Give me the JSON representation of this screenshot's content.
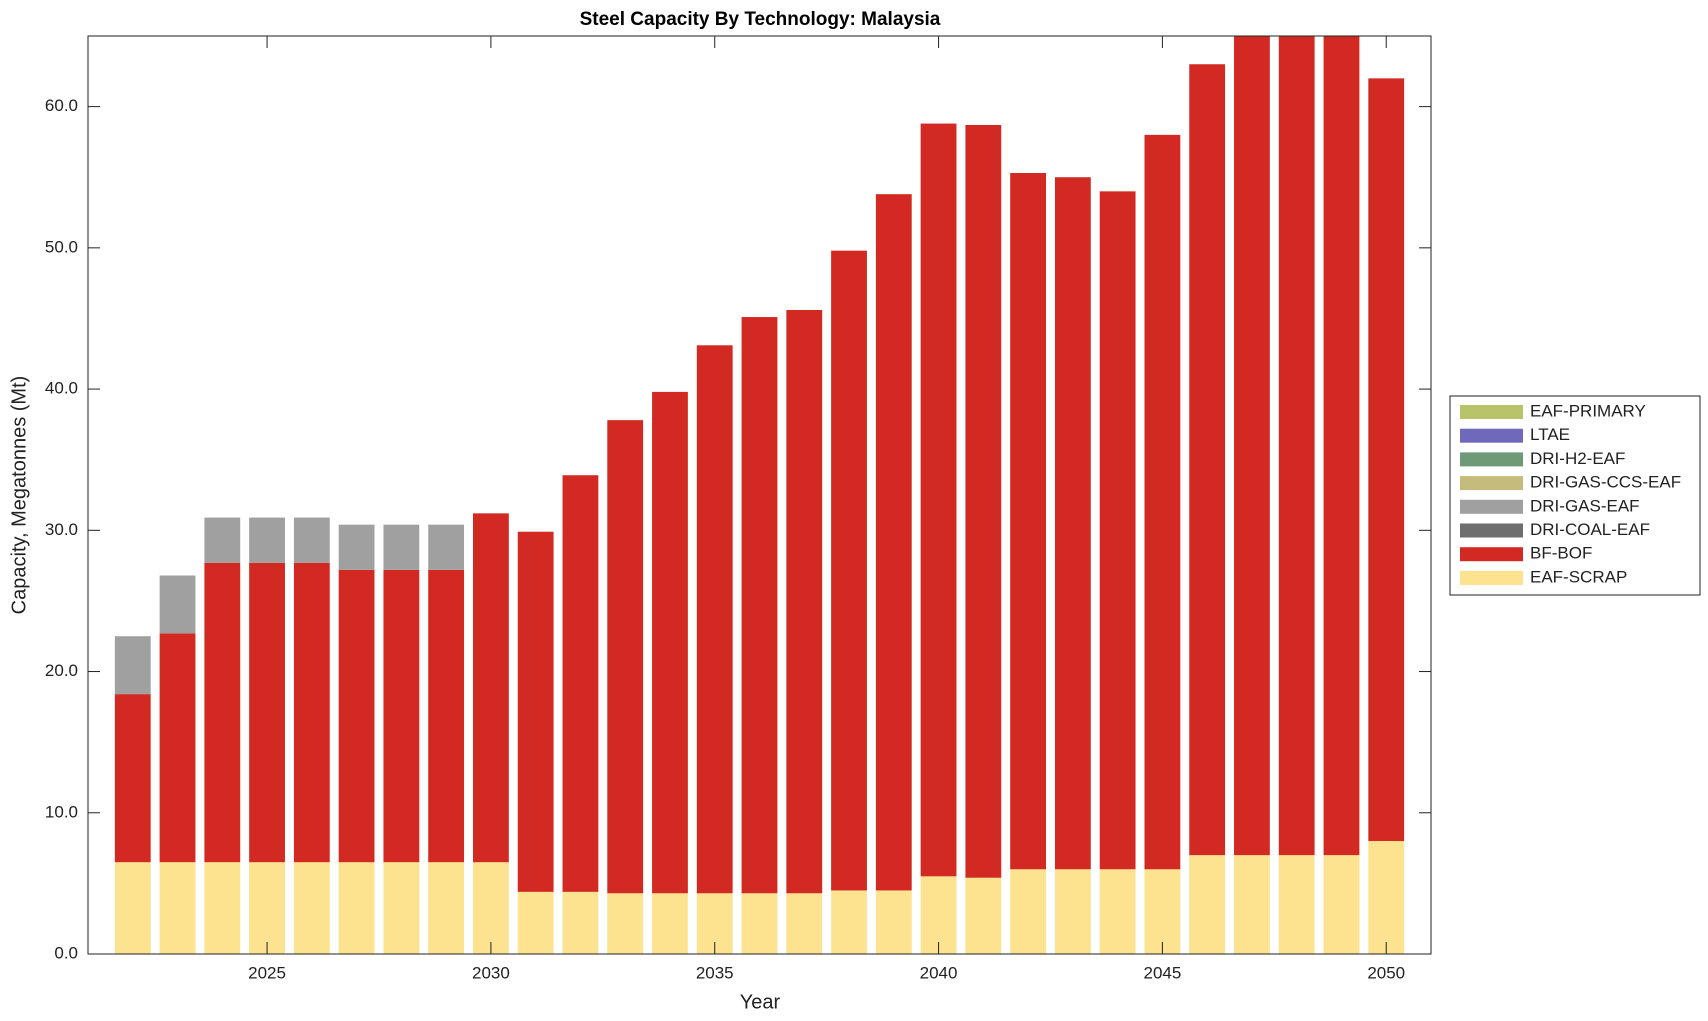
{
  "chart_data": {
    "type": "stacked-bar",
    "title": "Steel Capacity By Technology: Malaysia",
    "x_label": "Year",
    "y_label": "Capacity, Megatonnes (Mt)",
    "x": [
      2022,
      2023,
      2024,
      2025,
      2026,
      2027,
      2028,
      2029,
      2030,
      2031,
      2032,
      2033,
      2034,
      2035,
      2036,
      2037,
      2038,
      2039,
      2040,
      2041,
      2042,
      2043,
      2044,
      2045,
      2046,
      2047,
      2048,
      2049,
      2050
    ],
    "xlim": [
      2021,
      2051
    ],
    "xticks": [
      2025,
      2030,
      2035,
      2040,
      2045,
      2050
    ],
    "ylim": [
      0,
      65
    ],
    "yticks": [
      {
        "value": 0,
        "label": "0.0"
      },
      {
        "value": 10,
        "label": "10.0"
      },
      {
        "value": 20,
        "label": "20.0"
      },
      {
        "value": 30,
        "label": "30.0"
      },
      {
        "value": 40,
        "label": "40.0"
      },
      {
        "value": 50,
        "label": "50.0"
      },
      {
        "value": 60,
        "label": "60.0"
      }
    ],
    "grid": false,
    "legend_position": "right",
    "series": [
      {
        "name": "EAF-SCRAP",
        "color": "#fde28f",
        "values": [
          6.5,
          6.5,
          6.5,
          6.5,
          6.5,
          6.5,
          6.5,
          6.5,
          6.5,
          4.4,
          4.4,
          4.3,
          4.3,
          4.3,
          4.3,
          4.3,
          4.5,
          4.5,
          5.5,
          5.4,
          6.0,
          6.0,
          6.0,
          6.0,
          7.0,
          7.0,
          7.0,
          7.0,
          8.0
        ]
      },
      {
        "name": "BF-BOF",
        "color": "#d22a23",
        "values": [
          11.9,
          16.2,
          21.2,
          21.2,
          21.2,
          20.7,
          20.7,
          20.7,
          24.7,
          25.5,
          29.5,
          33.5,
          35.5,
          38.8,
          40.8,
          41.3,
          45.3,
          49.3,
          53.3,
          53.3,
          49.3,
          49.0,
          48.0,
          52.0,
          56.0,
          60.0,
          60.0,
          60.0,
          54.0
        ]
      },
      {
        "name": "DRI-COAL-EAF",
        "color": "#6e6e6e",
        "values": [
          0,
          0,
          0,
          0,
          0,
          0,
          0,
          0,
          0,
          0,
          0,
          0,
          0,
          0,
          0,
          0,
          0,
          0,
          0,
          0,
          0,
          0,
          0,
          0,
          0,
          0,
          0,
          0,
          0
        ]
      },
      {
        "name": "DRI-GAS-EAF",
        "color": "#a0a0a0",
        "values": [
          4.1,
          4.1,
          3.2,
          3.2,
          3.2,
          3.2,
          3.2,
          3.2,
          0,
          0,
          0,
          0,
          0,
          0,
          0,
          0,
          0,
          0,
          0,
          0,
          0,
          0,
          0,
          0,
          0,
          0,
          0,
          0,
          0
        ]
      },
      {
        "name": "DRI-GAS-CCS-EAF",
        "color": "#c4bb7c",
        "values": [
          0,
          0,
          0,
          0,
          0,
          0,
          0,
          0,
          0,
          0,
          0,
          0,
          0,
          0,
          0,
          0,
          0,
          0,
          0,
          0,
          0,
          0,
          0,
          0,
          0,
          0,
          0,
          0,
          0
        ]
      },
      {
        "name": "DRI-H2-EAF",
        "color": "#6e9a78",
        "values": [
          0,
          0,
          0,
          0,
          0,
          0,
          0,
          0,
          0,
          0,
          0,
          0,
          0,
          0,
          0,
          0,
          0,
          0,
          0,
          0,
          0,
          0,
          0,
          0,
          0,
          0,
          0,
          0,
          0
        ]
      },
      {
        "name": "LTAE",
        "color": "#7068bb",
        "values": [
          0,
          0,
          0,
          0,
          0,
          0,
          0,
          0,
          0,
          0,
          0,
          0,
          0,
          0,
          0,
          0,
          0,
          0,
          0,
          0,
          0,
          0,
          0,
          0,
          0,
          0,
          0,
          0,
          0
        ]
      },
      {
        "name": "EAF-PRIMARY",
        "color": "#b9c46a",
        "values": [
          0,
          0,
          0,
          0,
          0,
          0,
          0,
          0,
          0,
          0,
          0,
          0,
          0,
          0,
          0,
          0,
          0,
          0,
          0,
          0,
          0,
          0,
          0,
          0,
          0,
          0,
          0,
          0,
          0
        ]
      }
    ]
  }
}
